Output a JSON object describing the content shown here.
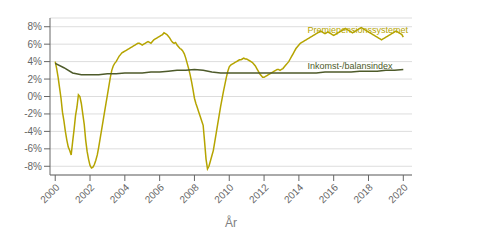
{
  "chart_data": {
    "type": "line",
    "title": "",
    "xlabel": "År",
    "xlim": [
      1999.7,
      2020.5
    ],
    "xticks": [
      2000,
      2002,
      2004,
      2006,
      2008,
      2010,
      2012,
      2014,
      2016,
      2018,
      2020
    ],
    "ylim": [
      -0.09,
      0.09
    ],
    "yticks": [
      {
        "value": -0.08,
        "label": "-8%"
      },
      {
        "value": -0.06,
        "label": "-6%"
      },
      {
        "value": -0.04,
        "label": "-4%"
      },
      {
        "value": -0.02,
        "label": "-2%"
      },
      {
        "value": 0.0,
        "label": "0%"
      },
      {
        "value": 0.02,
        "label": "2%"
      },
      {
        "value": 0.04,
        "label": "4%"
      },
      {
        "value": 0.06,
        "label": "6%"
      },
      {
        "value": 0.08,
        "label": "8%"
      }
    ],
    "grid": "y",
    "series": [
      {
        "color": "#b5a400",
        "x": [
          2000.0,
          2000.083,
          2000.167,
          2000.25,
          2000.333,
          2000.417,
          2000.5,
          2000.583,
          2000.667,
          2000.75,
          2000.833,
          2000.917,
          2001.0,
          2001.083,
          2001.167,
          2001.25,
          2001.333,
          2001.417,
          2001.5,
          2001.583,
          2001.667,
          2001.75,
          2001.833,
          2001.917,
          2002.0,
          2002.083,
          2002.167,
          2002.25,
          2002.333,
          2002.417,
          2002.5,
          2002.583,
          2002.667,
          2002.75,
          2002.833,
          2002.917,
          2003.0,
          2003.083,
          2003.167,
          2003.25,
          2003.333,
          2003.417,
          2003.5,
          2003.583,
          2003.667,
          2003.75,
          2003.833,
          2003.917,
          2004.0,
          2004.083,
          2004.167,
          2004.25,
          2004.333,
          2004.417,
          2004.5,
          2004.583,
          2004.667,
          2004.75,
          2004.833,
          2004.917,
          2005.0,
          2005.083,
          2005.167,
          2005.25,
          2005.333,
          2005.417,
          2005.5,
          2005.583,
          2005.667,
          2005.75,
          2005.833,
          2005.917,
          2006.0,
          2006.083,
          2006.167,
          2006.25,
          2006.333,
          2006.417,
          2006.5,
          2006.583,
          2006.667,
          2006.75,
          2006.833,
          2006.917,
          2007.0,
          2007.083,
          2007.167,
          2007.25,
          2007.333,
          2007.417,
          2007.5,
          2007.583,
          2007.667,
          2007.75,
          2007.833,
          2007.917,
          2008.0,
          2008.083,
          2008.167,
          2008.25,
          2008.333,
          2008.417,
          2008.5,
          2008.583,
          2008.667,
          2008.75,
          2008.833,
          2008.917,
          2009.0,
          2009.083,
          2009.167,
          2009.25,
          2009.333,
          2009.417,
          2009.5,
          2009.583,
          2009.667,
          2009.75,
          2009.833,
          2009.917,
          2010.0,
          2010.083,
          2010.167,
          2010.25,
          2010.333,
          2010.417,
          2010.5,
          2010.583,
          2010.667,
          2010.75,
          2010.833,
          2010.917,
          2011.0,
          2011.083,
          2011.167,
          2011.25,
          2011.333,
          2011.417,
          2011.5,
          2011.583,
          2011.667,
          2011.75,
          2011.833,
          2011.917,
          2012.0,
          2012.083,
          2012.167,
          2012.25,
          2012.333,
          2012.417,
          2012.5,
          2012.583,
          2012.667,
          2012.75,
          2012.833,
          2012.917,
          2013.0,
          2013.083,
          2013.167,
          2013.25,
          2013.333,
          2013.417,
          2013.5,
          2013.583,
          2013.667,
          2013.75,
          2013.833,
          2013.917,
          2014.0,
          2014.083,
          2014.167,
          2014.25,
          2014.333,
          2014.417,
          2014.5,
          2014.583,
          2014.667,
          2014.75,
          2014.833,
          2014.917,
          2015.0,
          2015.083,
          2015.167,
          2015.25,
          2015.333,
          2015.417,
          2015.5,
          2015.583,
          2015.667,
          2015.75,
          2015.833,
          2015.917,
          2016.0,
          2016.083,
          2016.167,
          2016.25,
          2016.333,
          2016.417,
          2016.5,
          2016.583,
          2016.667,
          2016.75,
          2016.833,
          2016.917,
          2017.0,
          2017.083,
          2017.167,
          2017.25,
          2017.333,
          2017.417,
          2017.5,
          2017.583,
          2017.667,
          2017.75,
          2017.833,
          2017.917,
          2018.0,
          2018.083,
          2018.167,
          2018.25,
          2018.333,
          2018.417,
          2018.5,
          2018.583,
          2018.667,
          2018.75,
          2018.833,
          2018.917,
          2019.0,
          2019.083,
          2019.167,
          2019.25,
          2019.333,
          2019.417,
          2019.5,
          2019.583,
          2019.667,
          2019.75,
          2019.833,
          2019.917,
          2020.0
        ],
        "values": [
          0.04,
          0.032,
          0.022,
          0.01,
          -0.002,
          -0.018,
          -0.028,
          -0.04,
          -0.05,
          -0.058,
          -0.062,
          -0.067,
          -0.052,
          -0.038,
          -0.022,
          -0.012,
          0.002,
          0.0,
          -0.008,
          -0.02,
          -0.032,
          -0.05,
          -0.063,
          -0.072,
          -0.079,
          -0.082,
          -0.081,
          -0.078,
          -0.073,
          -0.067,
          -0.058,
          -0.048,
          -0.038,
          -0.028,
          -0.018,
          -0.008,
          0.002,
          0.012,
          0.022,
          0.03,
          0.035,
          0.038,
          0.04,
          0.043,
          0.046,
          0.048,
          0.05,
          0.051,
          0.052,
          0.053,
          0.054,
          0.055,
          0.056,
          0.057,
          0.058,
          0.059,
          0.06,
          0.061,
          0.061,
          0.06,
          0.059,
          0.06,
          0.061,
          0.062,
          0.063,
          0.062,
          0.061,
          0.063,
          0.065,
          0.066,
          0.067,
          0.068,
          0.069,
          0.07,
          0.071,
          0.073,
          0.072,
          0.071,
          0.069,
          0.067,
          0.064,
          0.062,
          0.061,
          0.062,
          0.059,
          0.057,
          0.055,
          0.054,
          0.052,
          0.049,
          0.044,
          0.038,
          0.032,
          0.025,
          0.017,
          0.008,
          -0.002,
          -0.008,
          -0.013,
          -0.018,
          -0.023,
          -0.028,
          -0.033,
          -0.052,
          -0.072,
          -0.083,
          -0.08,
          -0.074,
          -0.068,
          -0.062,
          -0.052,
          -0.042,
          -0.032,
          -0.022,
          -0.012,
          -0.003,
          0.006,
          0.014,
          0.022,
          0.029,
          0.034,
          0.036,
          0.037,
          0.038,
          0.039,
          0.04,
          0.041,
          0.042,
          0.042,
          0.043,
          0.044,
          0.043,
          0.043,
          0.042,
          0.041,
          0.04,
          0.039,
          0.037,
          0.035,
          0.032,
          0.029,
          0.026,
          0.024,
          0.022,
          0.022,
          0.023,
          0.024,
          0.025,
          0.026,
          0.027,
          0.028,
          0.029,
          0.03,
          0.031,
          0.031,
          0.03,
          0.031,
          0.032,
          0.034,
          0.036,
          0.038,
          0.04,
          0.043,
          0.046,
          0.049,
          0.052,
          0.055,
          0.057,
          0.059,
          0.061,
          0.062,
          0.063,
          0.064,
          0.065,
          0.066,
          0.067,
          0.068,
          0.069,
          0.07,
          0.071,
          0.072,
          0.073,
          0.074,
          0.075,
          0.074,
          0.073,
          0.072,
          0.073,
          0.074,
          0.073,
          0.072,
          0.071,
          0.07,
          0.071,
          0.072,
          0.073,
          0.074,
          0.075,
          0.076,
          0.077,
          0.078,
          0.077,
          0.076,
          0.075,
          0.074,
          0.073,
          0.074,
          0.075,
          0.076,
          0.077,
          0.078,
          0.079,
          0.078,
          0.077,
          0.076,
          0.075,
          0.074,
          0.073,
          0.072,
          0.071,
          0.07,
          0.069,
          0.068,
          0.067,
          0.066,
          0.065,
          0.066,
          0.067,
          0.068,
          0.069,
          0.07,
          0.071,
          0.072,
          0.073,
          0.074,
          0.075,
          0.074,
          0.073,
          0.072,
          0.071,
          0.068
        ]
      },
      {
        "color": "#4d5a2a",
        "x": [
          2000.0,
          2000.5,
          2001.0,
          2001.5,
          2002.0,
          2002.5,
          2003.0,
          2003.5,
          2004.0,
          2004.5,
          2005.0,
          2005.5,
          2006.0,
          2006.5,
          2007.0,
          2007.5,
          2008.0,
          2008.5,
          2009.0,
          2009.5,
          2010.0,
          2010.5,
          2011.0,
          2011.5,
          2012.0,
          2012.5,
          2013.0,
          2013.5,
          2014.0,
          2014.5,
          2015.0,
          2015.5,
          2016.0,
          2016.5,
          2017.0,
          2017.5,
          2018.0,
          2018.5,
          2019.0,
          2019.5,
          2020.0
        ],
        "values": [
          0.038,
          0.033,
          0.027,
          0.025,
          0.025,
          0.025,
          0.026,
          0.026,
          0.027,
          0.027,
          0.027,
          0.028,
          0.028,
          0.029,
          0.03,
          0.03,
          0.031,
          0.03,
          0.028,
          0.027,
          0.027,
          0.027,
          0.027,
          0.027,
          0.027,
          0.027,
          0.027,
          0.027,
          0.027,
          0.027,
          0.027,
          0.028,
          0.028,
          0.028,
          0.028,
          0.029,
          0.029,
          0.029,
          0.03,
          0.03,
          0.031
        ]
      }
    ],
    "annotations": [
      {
        "text": "Premiepensionssystemet",
        "x": 2014.5,
        "y": 0.077,
        "color": "#b5a400"
      },
      {
        "text": "Inkomst-/balansindex",
        "x": 2014.5,
        "y": 0.035,
        "color": "#4d5a2a"
      }
    ]
  }
}
